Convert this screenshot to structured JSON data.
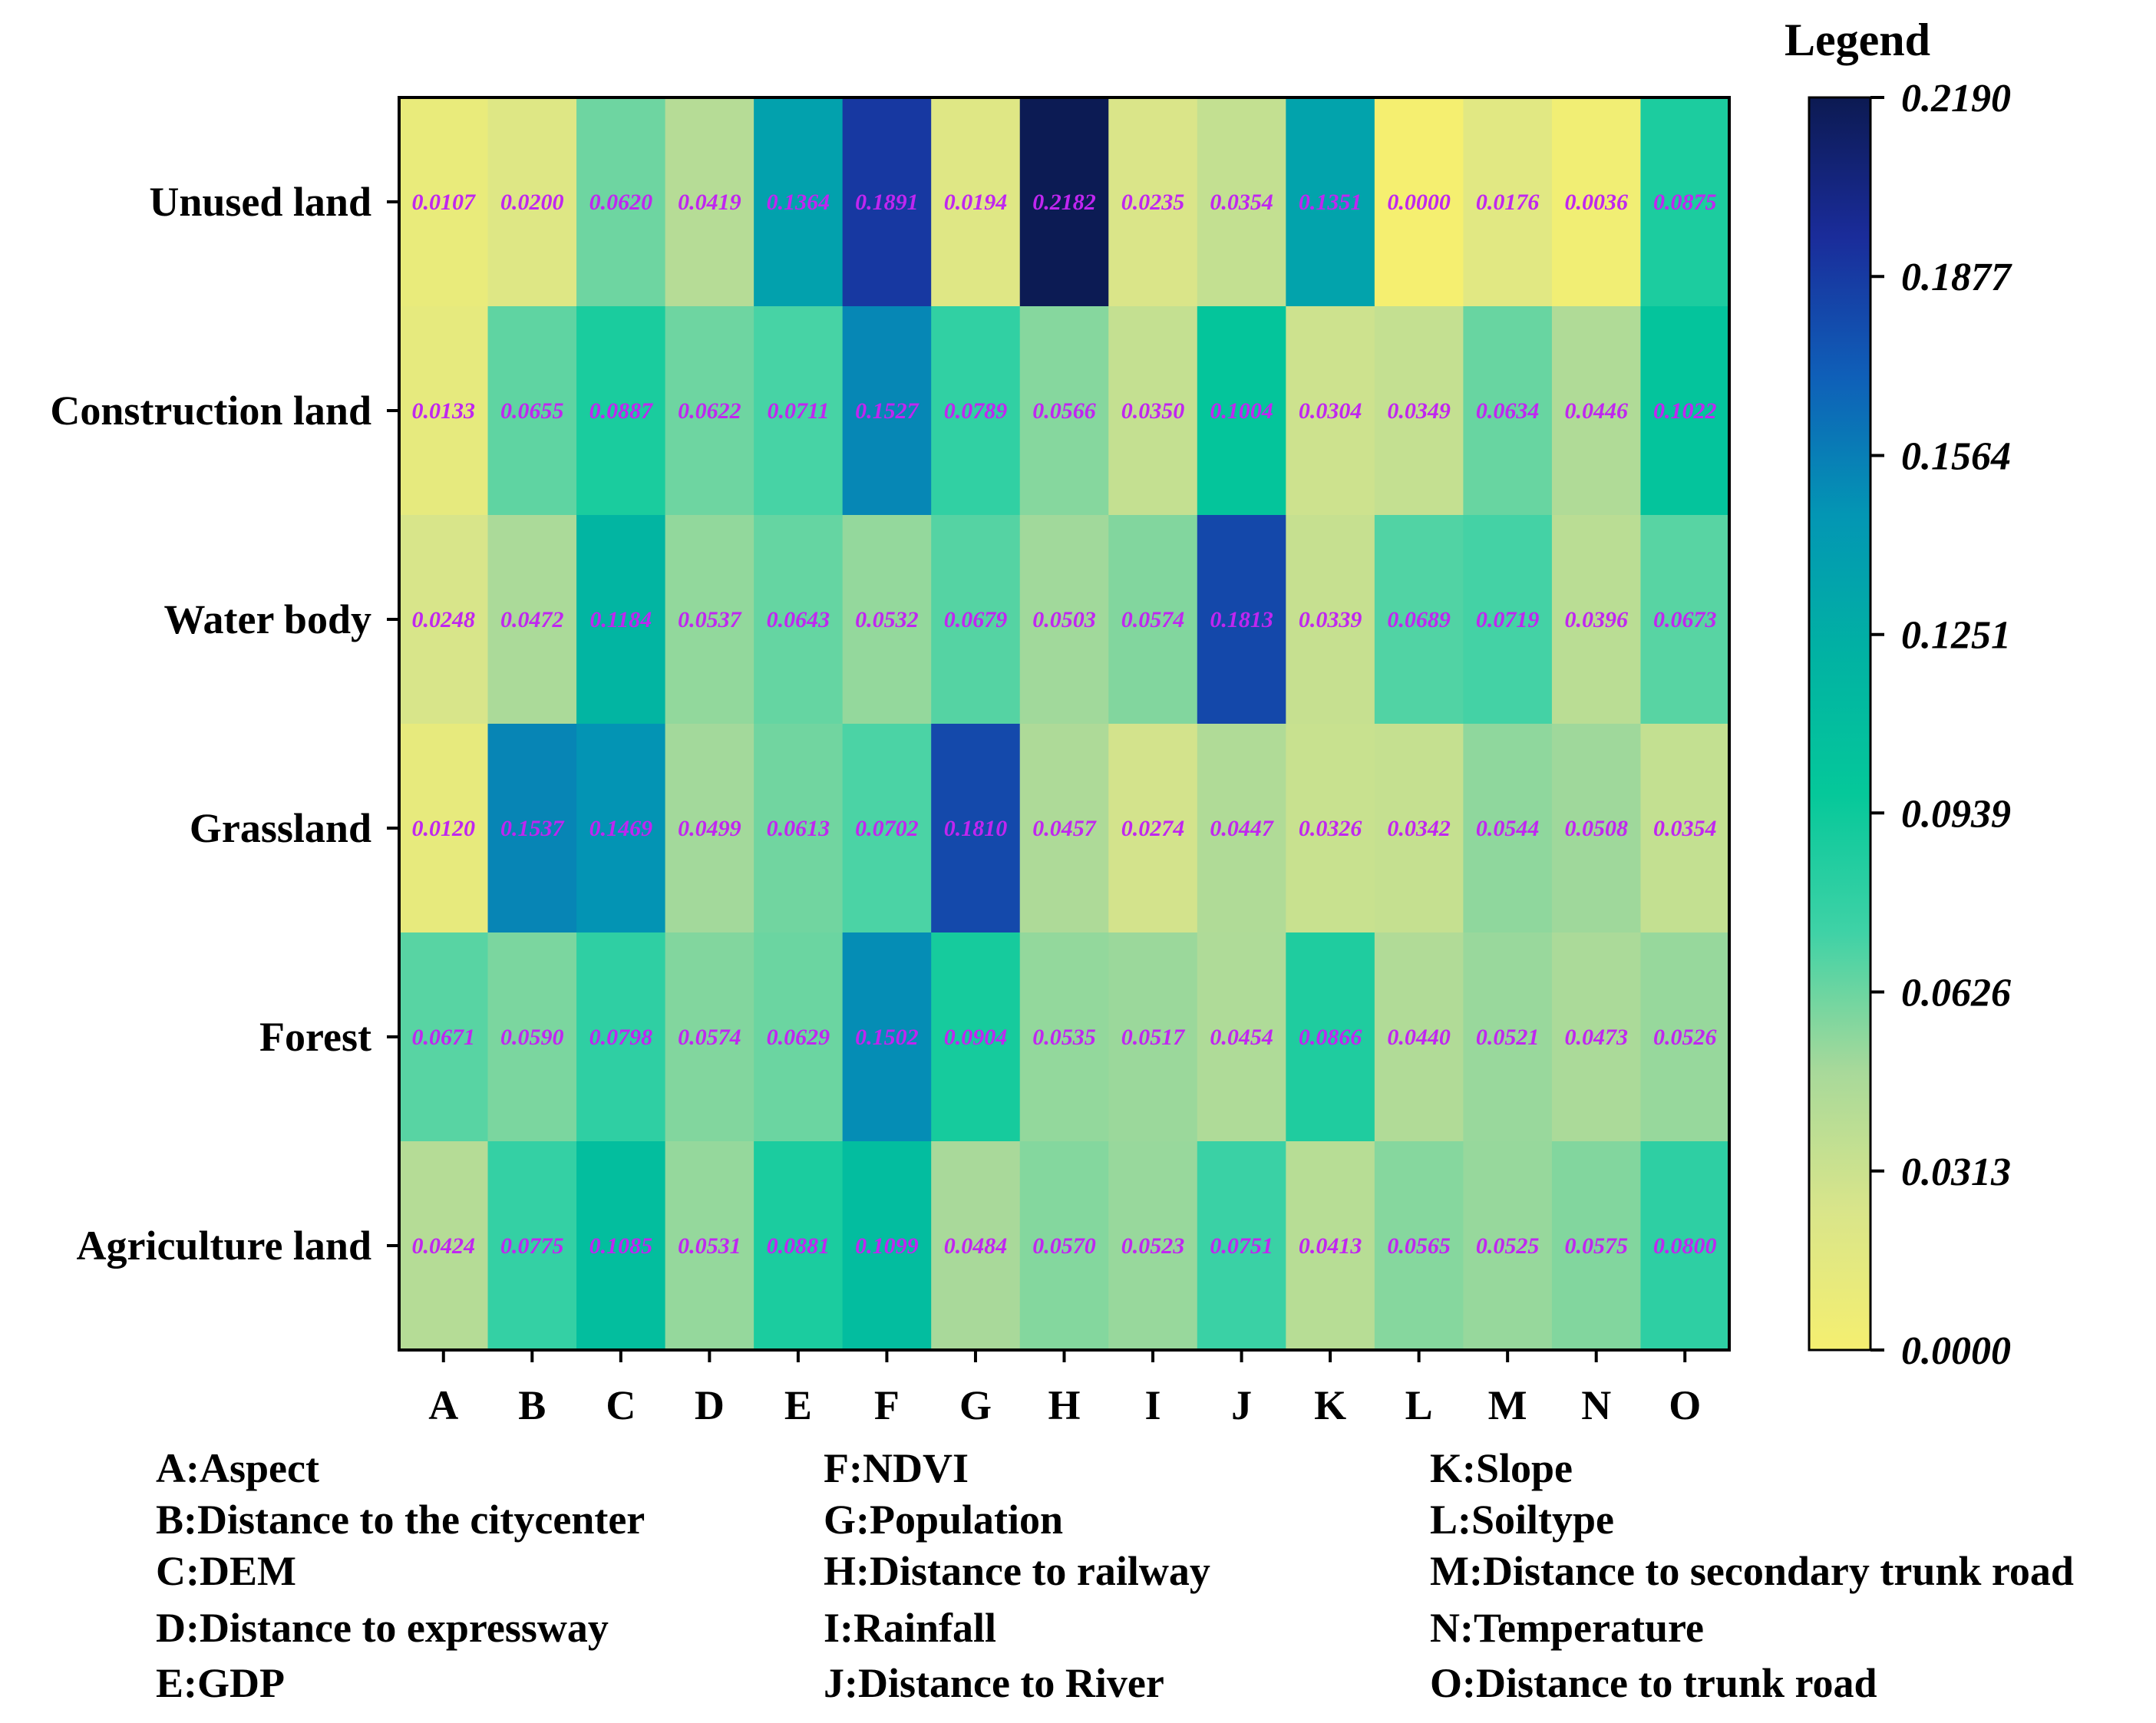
{
  "chart_data": {
    "type": "heatmap",
    "title": "",
    "legend_title": "Legend",
    "rows": [
      "Unused land",
      "Construction land",
      "Water body",
      "Grassland",
      "Forest",
      "Agriculture land"
    ],
    "columns": [
      "A",
      "B",
      "C",
      "D",
      "E",
      "F",
      "G",
      "H",
      "I",
      "J",
      "K",
      "L",
      "M",
      "N",
      "O"
    ],
    "values": [
      [
        0.0107,
        0.02,
        0.062,
        0.0419,
        0.1364,
        0.1891,
        0.0194,
        0.2182,
        0.0235,
        0.0354,
        0.1351,
        0.0,
        0.0176,
        0.0036,
        0.0875
      ],
      [
        0.0133,
        0.0655,
        0.0887,
        0.0622,
        0.0711,
        0.1527,
        0.0789,
        0.0566,
        0.035,
        0.1004,
        0.0304,
        0.0349,
        0.0634,
        0.0446,
        0.1022
      ],
      [
        0.0248,
        0.0472,
        0.1184,
        0.0537,
        0.0643,
        0.0532,
        0.0679,
        0.0503,
        0.0574,
        0.1813,
        0.0339,
        0.0689,
        0.0719,
        0.0396,
        0.0673
      ],
      [
        0.012,
        0.1537,
        0.1469,
        0.0499,
        0.0613,
        0.0702,
        0.181,
        0.0457,
        0.0274,
        0.0447,
        0.0326,
        0.0342,
        0.0544,
        0.0508,
        0.0354
      ],
      [
        0.0671,
        0.059,
        0.0798,
        0.0574,
        0.0629,
        0.1502,
        0.0904,
        0.0535,
        0.0517,
        0.0454,
        0.0866,
        0.044,
        0.0521,
        0.0473,
        0.0526
      ],
      [
        0.0424,
        0.0775,
        0.1085,
        0.0531,
        0.0881,
        0.1099,
        0.0484,
        0.057,
        0.0523,
        0.0751,
        0.0413,
        0.0565,
        0.0525,
        0.0575,
        0.08
      ]
    ],
    "value_labels": [
      [
        "0.0107",
        "0.0200",
        "0.0620",
        "0.0419",
        "0.1364",
        "0.1891",
        "0.0194",
        "0.2182",
        "0.0235",
        "0.0354",
        "0.1351",
        "0.0000",
        "0.0176",
        "0.0036",
        "0.0875"
      ],
      [
        "0.0133",
        "0.0655",
        "0.0887",
        "0.0622",
        "0.0711",
        "0.1527",
        "0.0789",
        "0.0566",
        "0.0350",
        "0.1004",
        "0.0304",
        "0.0349",
        "0.0634",
        "0.0446",
        "0.1022"
      ],
      [
        "0.0248",
        "0.0472",
        "0.1184",
        "0.0537",
        "0.0643",
        "0.0532",
        "0.0679",
        "0.0503",
        "0.0574",
        "0.1813",
        "0.0339",
        "0.0689",
        "0.0719",
        "0.0396",
        "0.0673"
      ],
      [
        "0.0120",
        "0.1537",
        "0.1469",
        "0.0499",
        "0.0613",
        "0.0702",
        "0.1810",
        "0.0457",
        "0.0274",
        "0.0447",
        "0.0326",
        "0.0342",
        "0.0544",
        "0.0508",
        "0.0354"
      ],
      [
        "0.0671",
        "0.0590",
        "0.0798",
        "0.0574",
        "0.0629",
        "0.1502",
        "0.0904",
        "0.0535",
        "0.0517",
        "0.0454",
        "0.0866",
        "0.0440",
        "0.0521",
        "0.0473",
        "0.0526"
      ],
      [
        "0.0424",
        "0.0775",
        "0.1085",
        "0.0531",
        "0.0881",
        "0.1099",
        "0.0484",
        "0.0570",
        "0.0523",
        "0.0751",
        "0.0413",
        "0.0565",
        "0.0525",
        "0.0575",
        "0.0800"
      ]
    ],
    "legend_range": [
      0.0,
      0.219
    ],
    "legend_ticks": [
      {
        "value": 0.219,
        "label": "0.2190"
      },
      {
        "value": 0.1877,
        "label": "0.1877"
      },
      {
        "value": 0.1564,
        "label": "0.1564"
      },
      {
        "value": 0.1251,
        "label": "0.1251"
      },
      {
        "value": 0.0939,
        "label": "0.0939"
      },
      {
        "value": 0.0626,
        "label": "0.0626"
      },
      {
        "value": 0.0313,
        "label": "0.0313"
      },
      {
        "value": 0.0,
        "label": "0.0000"
      }
    ],
    "colormap": [
      "#f5ef70",
      "#d9e58a",
      "#a8d99a",
      "#3fd2a6",
      "#05c89a",
      "#01b2a3",
      "#0396b4",
      "#0f5fb8",
      "#1a2c9a",
      "#0c1a52"
    ],
    "value_label_color": "#c026f0",
    "column_key": [
      "A:Aspect",
      "B:Distance to the citycenter",
      "C:DEM",
      "D:Distance to expressway",
      "E:GDP",
      "F:NDVI",
      "G:Population",
      "H:Distance to railway",
      "I:Rainfall",
      "J:Distance to River",
      "K:Slope",
      "L:Soiltype",
      "M:Distance to secondary trunk road",
      "N:Temperature",
      "O:Distance to trunk road"
    ]
  }
}
